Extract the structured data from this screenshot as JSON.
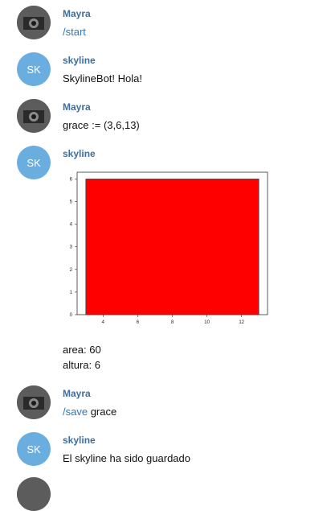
{
  "messages": [
    {
      "sender": "Mayra",
      "text_cmd": "/start"
    },
    {
      "sender": "skyline",
      "avatar_initials": "SK",
      "text": "SkylineBot! Hola!"
    },
    {
      "sender": "Mayra",
      "text": "grace := (3,6,13)"
    },
    {
      "sender": "skyline",
      "avatar_initials": "SK",
      "caption_lines": [
        "area: 60",
        "altura: 6"
      ]
    },
    {
      "sender": "Mayra",
      "text_cmd": "/save",
      "text": "grace"
    },
    {
      "sender": "skyline",
      "avatar_initials": "SK",
      "text": "El skyline ha sido guardado"
    }
  ],
  "chart_data": {
    "type": "bar",
    "bars": [
      {
        "x_start": 3,
        "x_end": 13,
        "height": 6
      }
    ],
    "xticks": [
      4,
      6,
      8,
      10,
      12
    ],
    "yticks": [
      0,
      1,
      2,
      3,
      4,
      5,
      6
    ],
    "xlim": [
      2.5,
      13.5
    ],
    "ylim": [
      0,
      6.3
    ],
    "bar_color": "#ff0000",
    "title": "",
    "xlabel": "",
    "ylabel": ""
  },
  "colors": {
    "sender_name": "#3d6e9e",
    "command": "#2f78b7",
    "bot_avatar": "#6aaee0"
  }
}
